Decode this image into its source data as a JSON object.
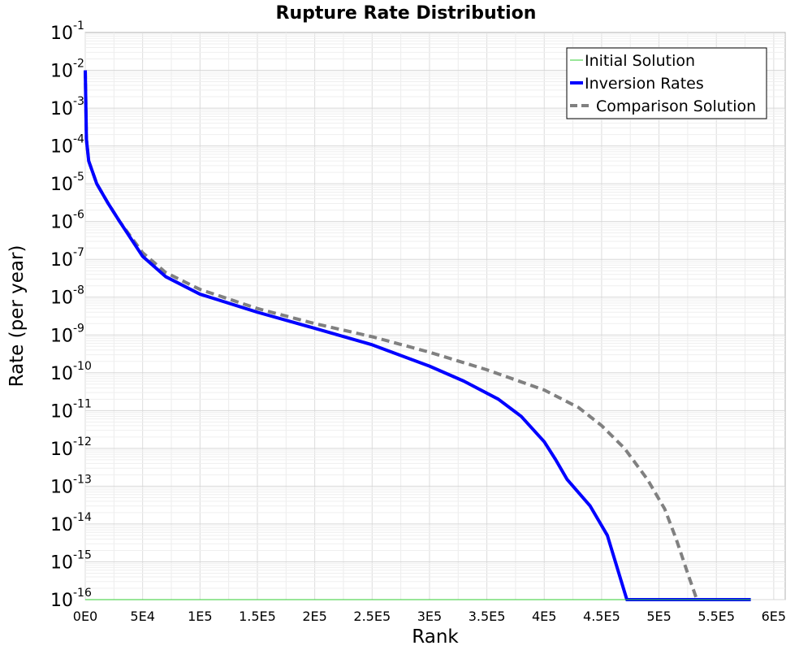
{
  "chart_data": {
    "type": "line",
    "title": "Rupture Rate Distribution",
    "xlabel": "Rank",
    "ylabel": "Rate (per year)",
    "xlim": [
      0,
      610000
    ],
    "ylim_log10": [
      -16,
      -1
    ],
    "y_scale": "log",
    "grid": true,
    "legend_position": "top-right",
    "x_tick_labels": [
      "0E0",
      "5E4",
      "1E5",
      "1.5E5",
      "2E5",
      "2.5E5",
      "3E5",
      "3.5E5",
      "4E5",
      "4.5E5",
      "5E5",
      "5.5E5",
      "6E5"
    ],
    "x_tick_values": [
      0,
      50000,
      100000,
      150000,
      200000,
      250000,
      300000,
      350000,
      400000,
      450000,
      500000,
      550000,
      600000
    ],
    "y_tick_exponents": [
      "-1",
      "-2",
      "-3",
      "-4",
      "-5",
      "-6",
      "-7",
      "-8",
      "-9",
      "-10",
      "-11",
      "-12",
      "-13",
      "-14",
      "-15",
      "-16"
    ],
    "y_tick_base": "10",
    "series": [
      {
        "name": "Initial Solution",
        "color": "#33cc33",
        "style": "solid-thin",
        "x": [
          0,
          580000
        ],
        "y": [
          1e-16,
          1e-16
        ]
      },
      {
        "name": "Inversion Rates",
        "color": "#0000ff",
        "style": "solid-thick",
        "x": [
          0,
          1000,
          3000,
          10000,
          20000,
          30000,
          50000,
          70000,
          100000,
          150000,
          200000,
          250000,
          300000,
          330000,
          360000,
          380000,
          400000,
          410000,
          420000,
          440000,
          455000,
          465000,
          472000,
          500000,
          580000
        ],
        "y": [
          0.01,
          0.00015,
          4e-05,
          1e-05,
          3e-06,
          1e-06,
          1.2e-07,
          3.5e-08,
          1.2e-08,
          4e-09,
          1.5e-09,
          5.5e-10,
          1.5e-10,
          6e-11,
          2e-11,
          7e-12,
          1.5e-12,
          5e-13,
          1.5e-13,
          3e-14,
          5e-15,
          5e-16,
          1e-16,
          1e-16,
          1e-16
        ]
      },
      {
        "name": "Comparison Solution",
        "color": "#808080",
        "style": "dashed-thick",
        "x": [
          0,
          1000,
          3000,
          10000,
          20000,
          30000,
          50000,
          70000,
          100000,
          150000,
          200000,
          250000,
          300000,
          350000,
          400000,
          430000,
          450000,
          470000,
          490000,
          505000,
          515000,
          525000,
          533000,
          560000,
          580000
        ],
        "y": [
          0.01,
          0.00015,
          4e-05,
          1e-05,
          3e-06,
          1e-06,
          1.5e-07,
          4.5e-08,
          1.6e-08,
          5e-09,
          2e-09,
          9e-10,
          3.5e-10,
          1.2e-10,
          3.5e-11,
          1.2e-11,
          4e-12,
          1e-12,
          1.5e-13,
          2.5e-14,
          4e-15,
          5e-16,
          1e-16,
          1e-16,
          1e-16
        ]
      }
    ]
  }
}
